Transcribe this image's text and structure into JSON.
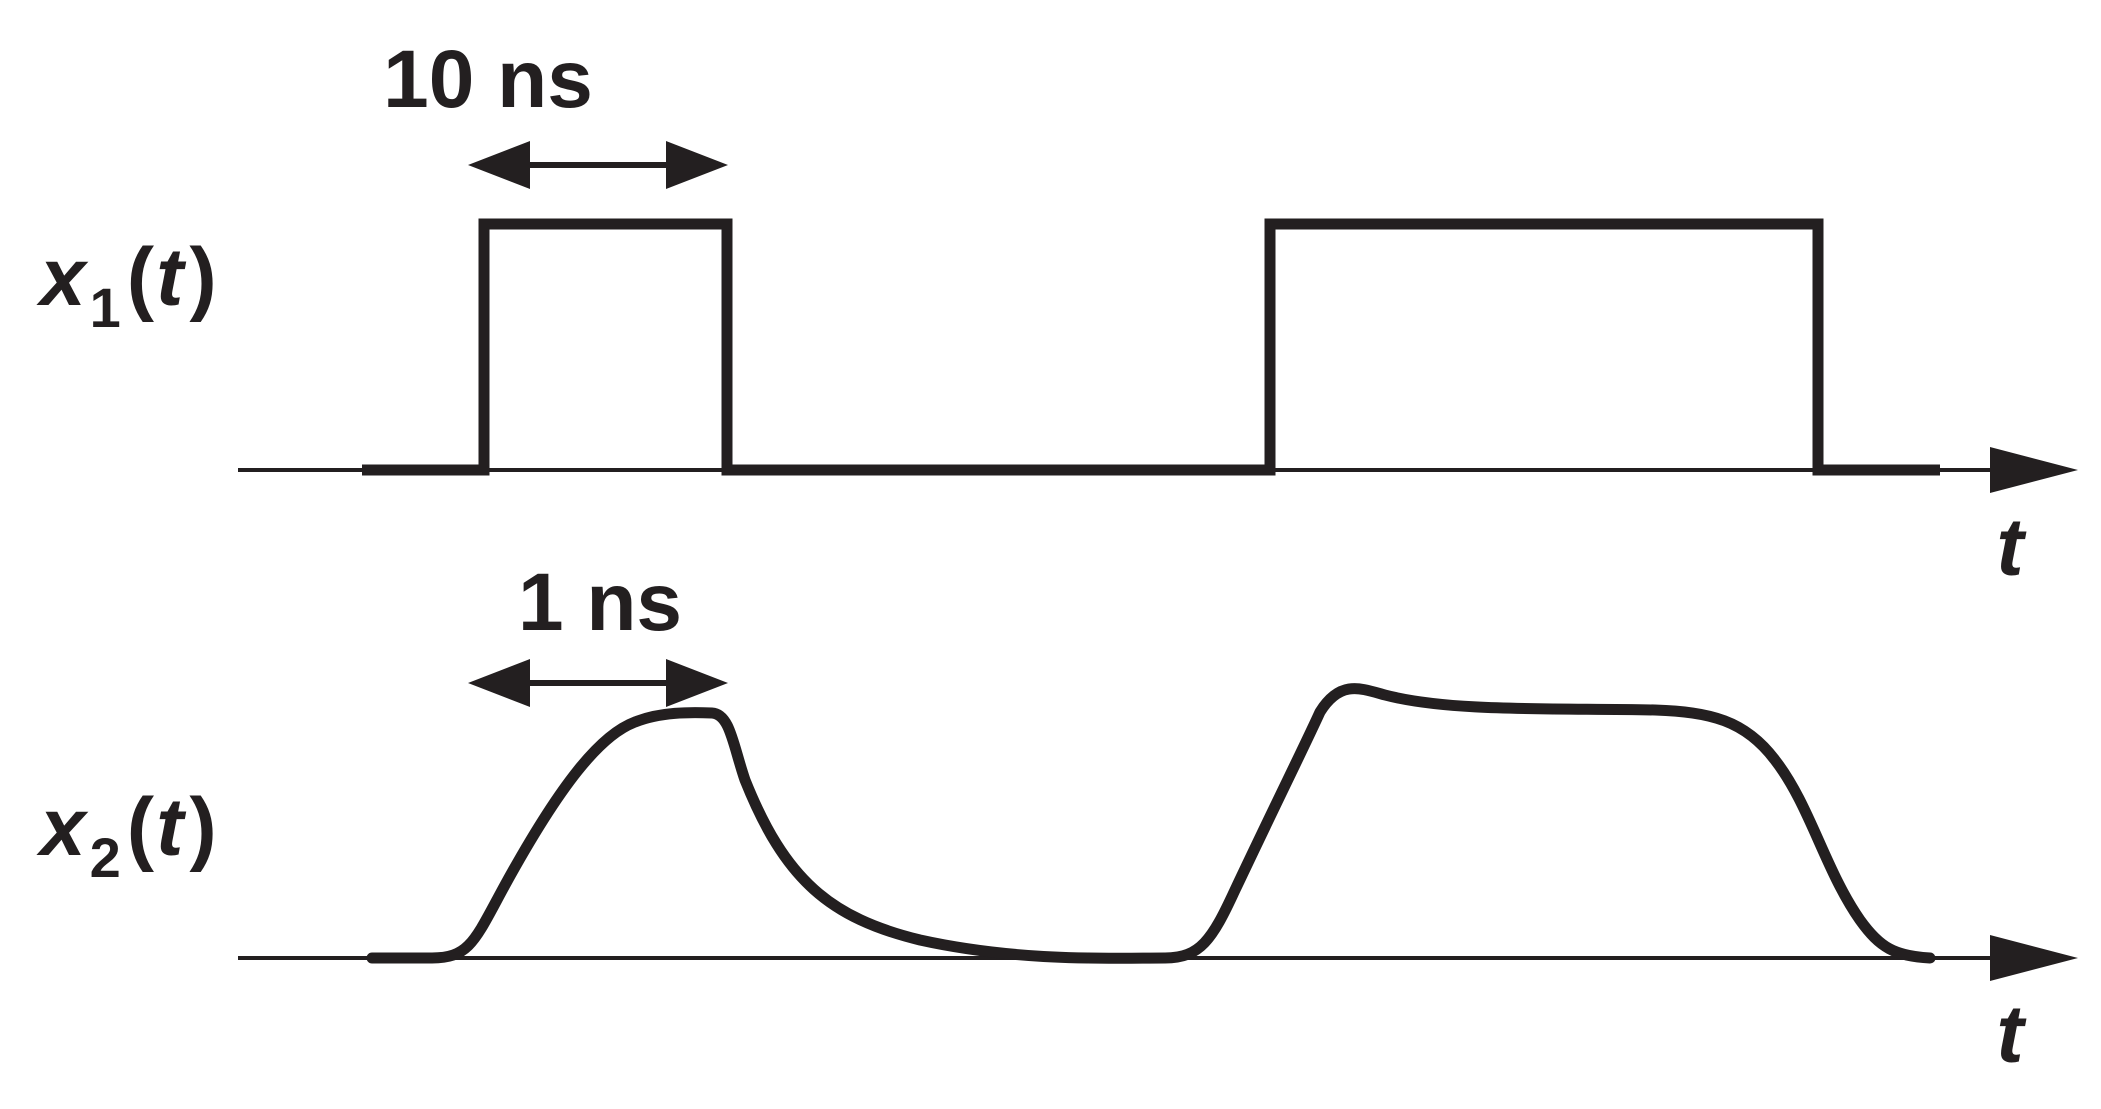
{
  "top_panel": {
    "signal_name": "x",
    "signal_sub": "1",
    "signal_arg_open": "(",
    "signal_arg": "t",
    "signal_arg_close": ")",
    "axis_label": "t",
    "dimension_label": "10 ns"
  },
  "bottom_panel": {
    "signal_name": "x",
    "signal_sub": "2",
    "signal_arg_open": "(",
    "signal_arg": "t",
    "signal_arg_close": ")",
    "axis_label": "t",
    "dimension_label": "1 ns"
  },
  "colors": {
    "ink": "#231f20",
    "background": "#ffffff"
  }
}
